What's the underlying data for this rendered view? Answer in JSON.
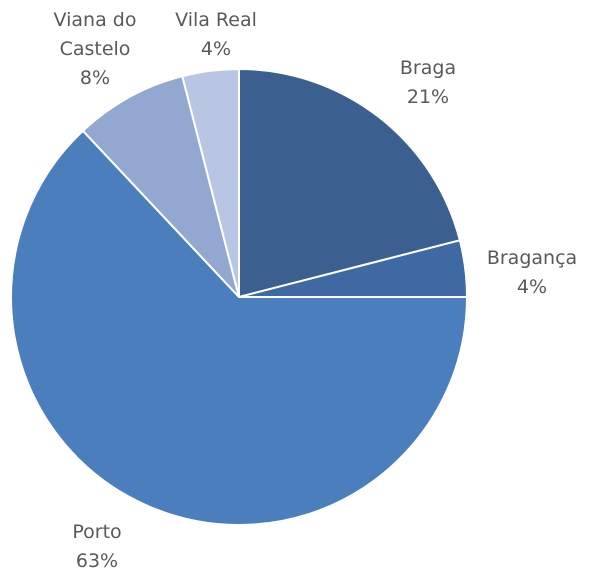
{
  "chart_data": {
    "type": "pie",
    "categories": [
      "Braga",
      "Bragança",
      "Porto",
      "Viana do Castelo",
      "Vila Real"
    ],
    "values": [
      21,
      4,
      63,
      8,
      4
    ],
    "value_labels": [
      "21%",
      "4%",
      "63%",
      "8%",
      "4%"
    ],
    "colors": [
      "#3b5f8e",
      "#3e69a2",
      "#4a7ebc",
      "#93a8d1",
      "#b9c6e3"
    ]
  }
}
